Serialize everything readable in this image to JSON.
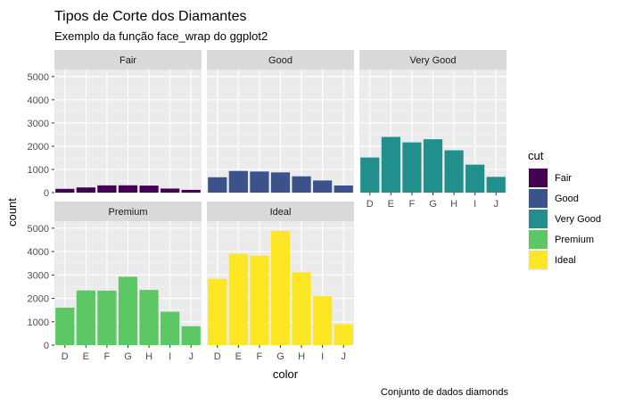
{
  "chart_data": {
    "type": "bar",
    "title": "Tipos de Corte dos Diamantes",
    "subtitle": "Exemplo da função face_wrap do ggplot2",
    "caption": "Conjunto de dados diamonds",
    "xlabel": "color",
    "ylabel": "count",
    "categories": [
      "D",
      "E",
      "F",
      "G",
      "H",
      "I",
      "J"
    ],
    "ylim": [
      0,
      5300
    ],
    "yticks": [
      0,
      1000,
      2000,
      3000,
      4000,
      5000
    ],
    "grid": true,
    "legend": {
      "title": "cut",
      "position": "right",
      "entries": [
        "Fair",
        "Good",
        "Very Good",
        "Premium",
        "Ideal"
      ]
    },
    "series": [
      {
        "name": "Fair",
        "color": "#440154",
        "values": [
          163,
          224,
          312,
          314,
          303,
          175,
          119
        ]
      },
      {
        "name": "Good",
        "color": "#3B528B",
        "values": [
          662,
          933,
          909,
          871,
          702,
          522,
          307
        ]
      },
      {
        "name": "Very Good",
        "color": "#21908C",
        "values": [
          1513,
          2400,
          2164,
          2299,
          1824,
          1204,
          678
        ]
      },
      {
        "name": "Premium",
        "color": "#5DC863",
        "values": [
          1603,
          2337,
          2331,
          2924,
          2360,
          1428,
          808
        ]
      },
      {
        "name": "Ideal",
        "color": "#FDE725",
        "values": [
          2834,
          3903,
          3826,
          4884,
          3115,
          2093,
          896
        ]
      }
    ]
  }
}
